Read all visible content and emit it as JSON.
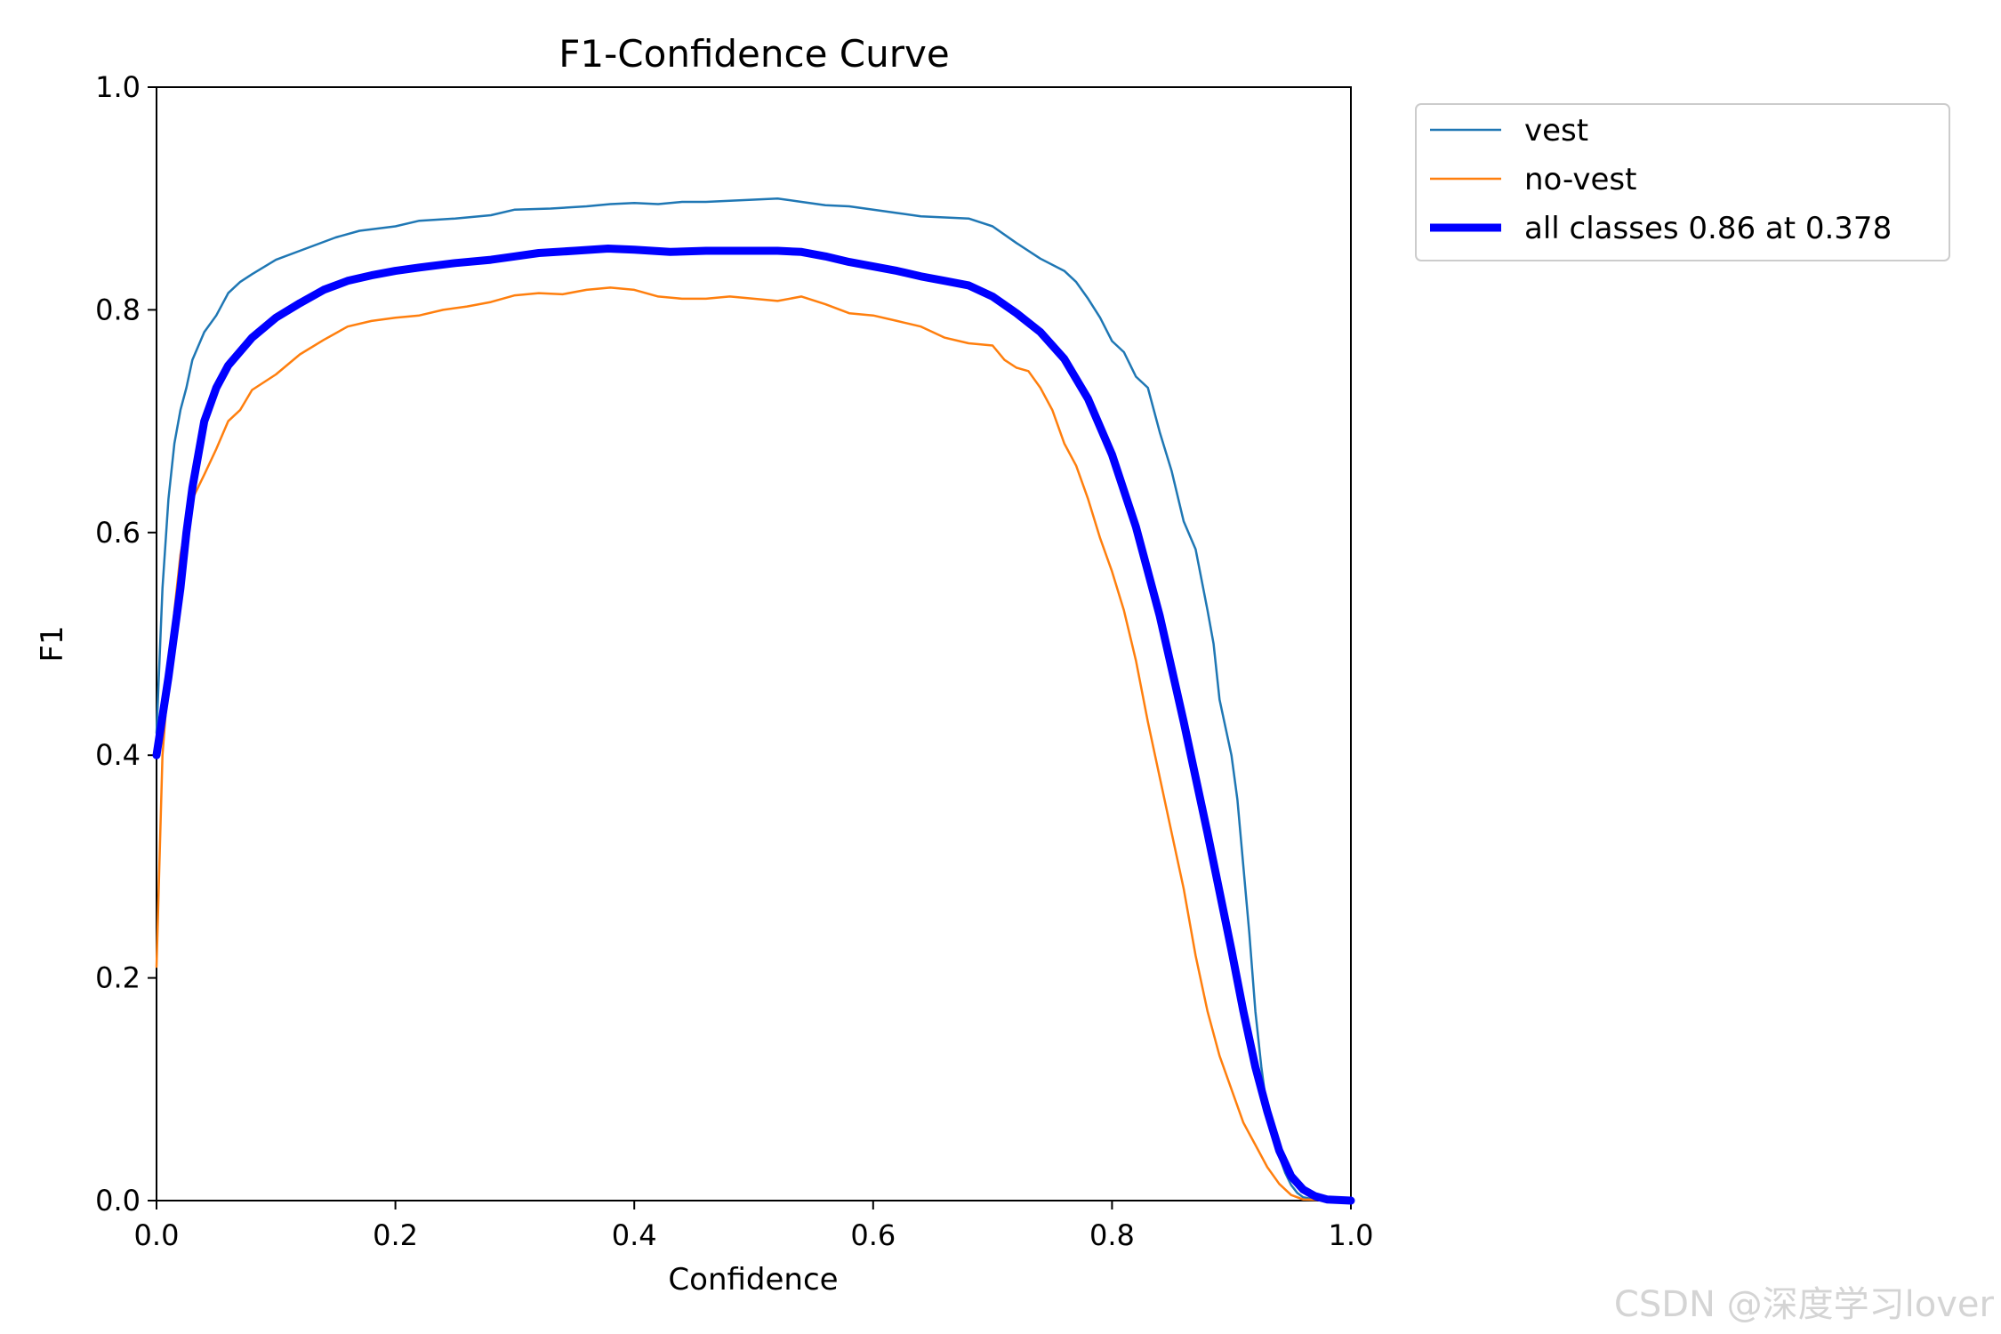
{
  "chart_data": {
    "type": "line",
    "title": "F1-Confidence Curve",
    "xlabel": "Confidence",
    "ylabel": "F1",
    "xlim": [
      0.0,
      1.0
    ],
    "ylim": [
      0.0,
      1.0
    ],
    "xticks": [
      0.0,
      0.2,
      0.4,
      0.6,
      0.8,
      1.0
    ],
    "xtick_labels": [
      "0.0",
      "0.2",
      "0.4",
      "0.6",
      "0.8",
      "1.0"
    ],
    "yticks": [
      0.0,
      0.2,
      0.4,
      0.6,
      0.8,
      1.0
    ],
    "ytick_labels": [
      "0.0",
      "0.2",
      "0.4",
      "0.6",
      "0.8",
      "1.0"
    ],
    "grid": false,
    "legend_position": "outside-top-right",
    "series": [
      {
        "name": "vest",
        "color": "#1f77b4",
        "width": "thin",
        "points": [
          [
            0.0,
            0.42
          ],
          [
            0.005,
            0.55
          ],
          [
            0.01,
            0.63
          ],
          [
            0.015,
            0.68
          ],
          [
            0.02,
            0.71
          ],
          [
            0.025,
            0.73
          ],
          [
            0.03,
            0.755
          ],
          [
            0.04,
            0.78
          ],
          [
            0.05,
            0.795
          ],
          [
            0.06,
            0.815
          ],
          [
            0.07,
            0.825
          ],
          [
            0.08,
            0.832
          ],
          [
            0.1,
            0.845
          ],
          [
            0.12,
            0.853
          ],
          [
            0.15,
            0.865
          ],
          [
            0.17,
            0.871
          ],
          [
            0.2,
            0.875
          ],
          [
            0.22,
            0.88
          ],
          [
            0.25,
            0.882
          ],
          [
            0.28,
            0.885
          ],
          [
            0.3,
            0.89
          ],
          [
            0.33,
            0.891
          ],
          [
            0.36,
            0.893
          ],
          [
            0.38,
            0.895
          ],
          [
            0.4,
            0.896
          ],
          [
            0.42,
            0.895
          ],
          [
            0.44,
            0.897
          ],
          [
            0.46,
            0.897
          ],
          [
            0.48,
            0.898
          ],
          [
            0.5,
            0.899
          ],
          [
            0.52,
            0.9
          ],
          [
            0.54,
            0.897
          ],
          [
            0.56,
            0.894
          ],
          [
            0.58,
            0.893
          ],
          [
            0.6,
            0.89
          ],
          [
            0.62,
            0.887
          ],
          [
            0.64,
            0.884
          ],
          [
            0.66,
            0.883
          ],
          [
            0.68,
            0.882
          ],
          [
            0.7,
            0.875
          ],
          [
            0.72,
            0.86
          ],
          [
            0.74,
            0.846
          ],
          [
            0.76,
            0.835
          ],
          [
            0.77,
            0.825
          ],
          [
            0.78,
            0.81
          ],
          [
            0.79,
            0.793
          ],
          [
            0.8,
            0.772
          ],
          [
            0.81,
            0.762
          ],
          [
            0.82,
            0.74
          ],
          [
            0.83,
            0.73
          ],
          [
            0.84,
            0.69
          ],
          [
            0.85,
            0.655
          ],
          [
            0.86,
            0.61
          ],
          [
            0.87,
            0.585
          ],
          [
            0.88,
            0.53
          ],
          [
            0.885,
            0.5
          ],
          [
            0.89,
            0.45
          ],
          [
            0.9,
            0.4
          ],
          [
            0.905,
            0.36
          ],
          [
            0.91,
            0.3
          ],
          [
            0.915,
            0.24
          ],
          [
            0.92,
            0.17
          ],
          [
            0.925,
            0.12
          ],
          [
            0.93,
            0.08
          ],
          [
            0.935,
            0.055
          ],
          [
            0.94,
            0.04
          ],
          [
            0.945,
            0.025
          ],
          [
            0.95,
            0.014
          ],
          [
            0.955,
            0.007
          ],
          [
            0.96,
            0.003
          ],
          [
            0.97,
            0.001
          ],
          [
            1.0,
            0.0
          ]
        ]
      },
      {
        "name": "no-vest",
        "color": "#ff7f0e",
        "width": "thin",
        "points": [
          [
            0.0,
            0.21
          ],
          [
            0.005,
            0.4
          ],
          [
            0.01,
            0.47
          ],
          [
            0.015,
            0.53
          ],
          [
            0.02,
            0.58
          ],
          [
            0.025,
            0.61
          ],
          [
            0.03,
            0.63
          ],
          [
            0.04,
            0.652
          ],
          [
            0.05,
            0.675
          ],
          [
            0.06,
            0.7
          ],
          [
            0.07,
            0.71
          ],
          [
            0.08,
            0.728
          ],
          [
            0.1,
            0.742
          ],
          [
            0.12,
            0.76
          ],
          [
            0.14,
            0.773
          ],
          [
            0.16,
            0.785
          ],
          [
            0.18,
            0.79
          ],
          [
            0.2,
            0.793
          ],
          [
            0.22,
            0.795
          ],
          [
            0.24,
            0.8
          ],
          [
            0.26,
            0.803
          ],
          [
            0.28,
            0.807
          ],
          [
            0.3,
            0.813
          ],
          [
            0.32,
            0.815
          ],
          [
            0.34,
            0.814
          ],
          [
            0.36,
            0.818
          ],
          [
            0.38,
            0.82
          ],
          [
            0.4,
            0.818
          ],
          [
            0.42,
            0.812
          ],
          [
            0.44,
            0.81
          ],
          [
            0.46,
            0.81
          ],
          [
            0.48,
            0.812
          ],
          [
            0.5,
            0.81
          ],
          [
            0.52,
            0.808
          ],
          [
            0.54,
            0.812
          ],
          [
            0.56,
            0.805
          ],
          [
            0.58,
            0.797
          ],
          [
            0.6,
            0.795
          ],
          [
            0.62,
            0.79
          ],
          [
            0.64,
            0.785
          ],
          [
            0.66,
            0.775
          ],
          [
            0.68,
            0.77
          ],
          [
            0.7,
            0.768
          ],
          [
            0.71,
            0.755
          ],
          [
            0.72,
            0.748
          ],
          [
            0.73,
            0.745
          ],
          [
            0.74,
            0.73
          ],
          [
            0.75,
            0.71
          ],
          [
            0.76,
            0.68
          ],
          [
            0.77,
            0.66
          ],
          [
            0.78,
            0.63
          ],
          [
            0.79,
            0.595
          ],
          [
            0.8,
            0.565
          ],
          [
            0.81,
            0.53
          ],
          [
            0.82,
            0.485
          ],
          [
            0.83,
            0.43
          ],
          [
            0.84,
            0.38
          ],
          [
            0.85,
            0.33
          ],
          [
            0.86,
            0.28
          ],
          [
            0.87,
            0.22
          ],
          [
            0.88,
            0.17
          ],
          [
            0.89,
            0.13
          ],
          [
            0.9,
            0.1
          ],
          [
            0.91,
            0.07
          ],
          [
            0.92,
            0.05
          ],
          [
            0.93,
            0.03
          ],
          [
            0.94,
            0.015
          ],
          [
            0.95,
            0.005
          ],
          [
            0.96,
            0.001
          ],
          [
            1.0,
            0.0
          ]
        ]
      },
      {
        "name": "all classes 0.86 at 0.378",
        "color": "#0000ff",
        "width": "thick",
        "points": [
          [
            0.0,
            0.4
          ],
          [
            0.01,
            0.47
          ],
          [
            0.02,
            0.55
          ],
          [
            0.025,
            0.6
          ],
          [
            0.03,
            0.64
          ],
          [
            0.04,
            0.7
          ],
          [
            0.05,
            0.73
          ],
          [
            0.06,
            0.75
          ],
          [
            0.08,
            0.775
          ],
          [
            0.1,
            0.793
          ],
          [
            0.12,
            0.806
          ],
          [
            0.14,
            0.818
          ],
          [
            0.16,
            0.826
          ],
          [
            0.18,
            0.831
          ],
          [
            0.2,
            0.835
          ],
          [
            0.22,
            0.838
          ],
          [
            0.25,
            0.842
          ],
          [
            0.28,
            0.845
          ],
          [
            0.3,
            0.848
          ],
          [
            0.32,
            0.851
          ],
          [
            0.35,
            0.853
          ],
          [
            0.378,
            0.855
          ],
          [
            0.4,
            0.854
          ],
          [
            0.43,
            0.852
          ],
          [
            0.46,
            0.853
          ],
          [
            0.5,
            0.853
          ],
          [
            0.52,
            0.853
          ],
          [
            0.54,
            0.852
          ],
          [
            0.56,
            0.848
          ],
          [
            0.58,
            0.843
          ],
          [
            0.6,
            0.839
          ],
          [
            0.62,
            0.835
          ],
          [
            0.64,
            0.83
          ],
          [
            0.66,
            0.826
          ],
          [
            0.68,
            0.822
          ],
          [
            0.7,
            0.812
          ],
          [
            0.72,
            0.797
          ],
          [
            0.74,
            0.78
          ],
          [
            0.76,
            0.756
          ],
          [
            0.78,
            0.72
          ],
          [
            0.8,
            0.67
          ],
          [
            0.82,
            0.605
          ],
          [
            0.84,
            0.525
          ],
          [
            0.86,
            0.43
          ],
          [
            0.88,
            0.33
          ],
          [
            0.9,
            0.225
          ],
          [
            0.91,
            0.17
          ],
          [
            0.92,
            0.12
          ],
          [
            0.93,
            0.08
          ],
          [
            0.94,
            0.045
          ],
          [
            0.95,
            0.022
          ],
          [
            0.96,
            0.01
          ],
          [
            0.97,
            0.004
          ],
          [
            0.98,
            0.001
          ],
          [
            1.0,
            0.0
          ]
        ]
      }
    ]
  },
  "watermark": "CSDN @深度学习lover"
}
